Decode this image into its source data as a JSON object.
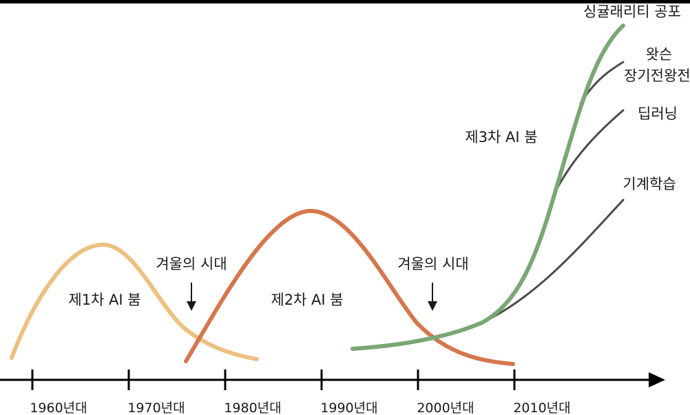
{
  "timeline": {
    "ticks": [
      "1960년대",
      "1970년대",
      "1980년대",
      "1990년대",
      "2000년대",
      "2010년대"
    ]
  },
  "booms": {
    "first": "제1차 AI 붐",
    "second": "제2차 AI 붐",
    "third": "제3차 AI 붐"
  },
  "winters": {
    "first": "겨울의 시대",
    "second": "겨울의 시대"
  },
  "branches": {
    "singularity": "싱귤래리티 공포",
    "watson_line1": "왓슨",
    "watson_line2": "장기전왕전",
    "deep_learning": "딥러닝",
    "machine_learning": "기계학습"
  },
  "colors": {
    "boom1": "#ecc07f",
    "boom2": "#d5774d",
    "boom3": "#7aa774",
    "branch": "#4a4a4a",
    "axis": "#000000"
  }
}
